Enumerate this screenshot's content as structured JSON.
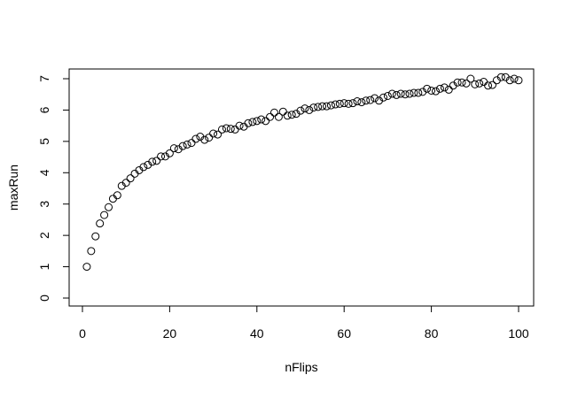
{
  "chart_data": {
    "type": "scatter",
    "title": "",
    "xlabel": "nFlips",
    "ylabel": "maxRun",
    "xlim": [
      0,
      100
    ],
    "ylim": [
      0,
      7
    ],
    "xticks": [
      0,
      20,
      40,
      60,
      80,
      100
    ],
    "yticks": [
      0,
      1,
      2,
      3,
      4,
      5,
      6,
      7
    ],
    "grid": false,
    "marker": "open-circle",
    "x": [
      1,
      2,
      3,
      4,
      5,
      6,
      7,
      8,
      9,
      10,
      11,
      12,
      13,
      14,
      15,
      16,
      17,
      18,
      19,
      20,
      21,
      22,
      23,
      24,
      25,
      26,
      27,
      28,
      29,
      30,
      31,
      32,
      33,
      34,
      35,
      36,
      37,
      38,
      39,
      40,
      41,
      42,
      43,
      44,
      45,
      46,
      47,
      48,
      49,
      50,
      51,
      52,
      53,
      54,
      55,
      56,
      57,
      58,
      59,
      60,
      61,
      62,
      63,
      64,
      65,
      66,
      67,
      68,
      69,
      70,
      71,
      72,
      73,
      74,
      75,
      76,
      77,
      78,
      79,
      80,
      81,
      82,
      83,
      84,
      85,
      86,
      87,
      88,
      89,
      90,
      91,
      92,
      93,
      94,
      95,
      96,
      97,
      98,
      99,
      100
    ],
    "y": [
      1.0,
      1.5,
      1.97,
      2.38,
      2.65,
      2.9,
      3.17,
      3.28,
      3.58,
      3.68,
      3.82,
      3.97,
      4.08,
      4.18,
      4.25,
      4.35,
      4.38,
      4.52,
      4.52,
      4.62,
      4.78,
      4.75,
      4.85,
      4.9,
      4.95,
      5.08,
      5.15,
      5.05,
      5.12,
      5.25,
      5.22,
      5.38,
      5.42,
      5.4,
      5.38,
      5.5,
      5.47,
      5.58,
      5.62,
      5.65,
      5.7,
      5.65,
      5.78,
      5.92,
      5.78,
      5.95,
      5.82,
      5.85,
      5.88,
      5.98,
      6.05,
      6.0,
      6.08,
      6.1,
      6.12,
      6.12,
      6.15,
      6.18,
      6.2,
      6.22,
      6.2,
      6.22,
      6.28,
      6.25,
      6.3,
      6.32,
      6.38,
      6.3,
      6.4,
      6.45,
      6.52,
      6.48,
      6.52,
      6.5,
      6.52,
      6.55,
      6.55,
      6.58,
      6.68,
      6.62,
      6.6,
      6.68,
      6.72,
      6.65,
      6.78,
      6.88,
      6.88,
      6.85,
      7.0,
      6.82,
      6.85,
      6.9,
      6.78,
      6.8,
      6.95,
      7.05,
      7.05,
      6.95,
      7.0,
      6.95
    ]
  }
}
